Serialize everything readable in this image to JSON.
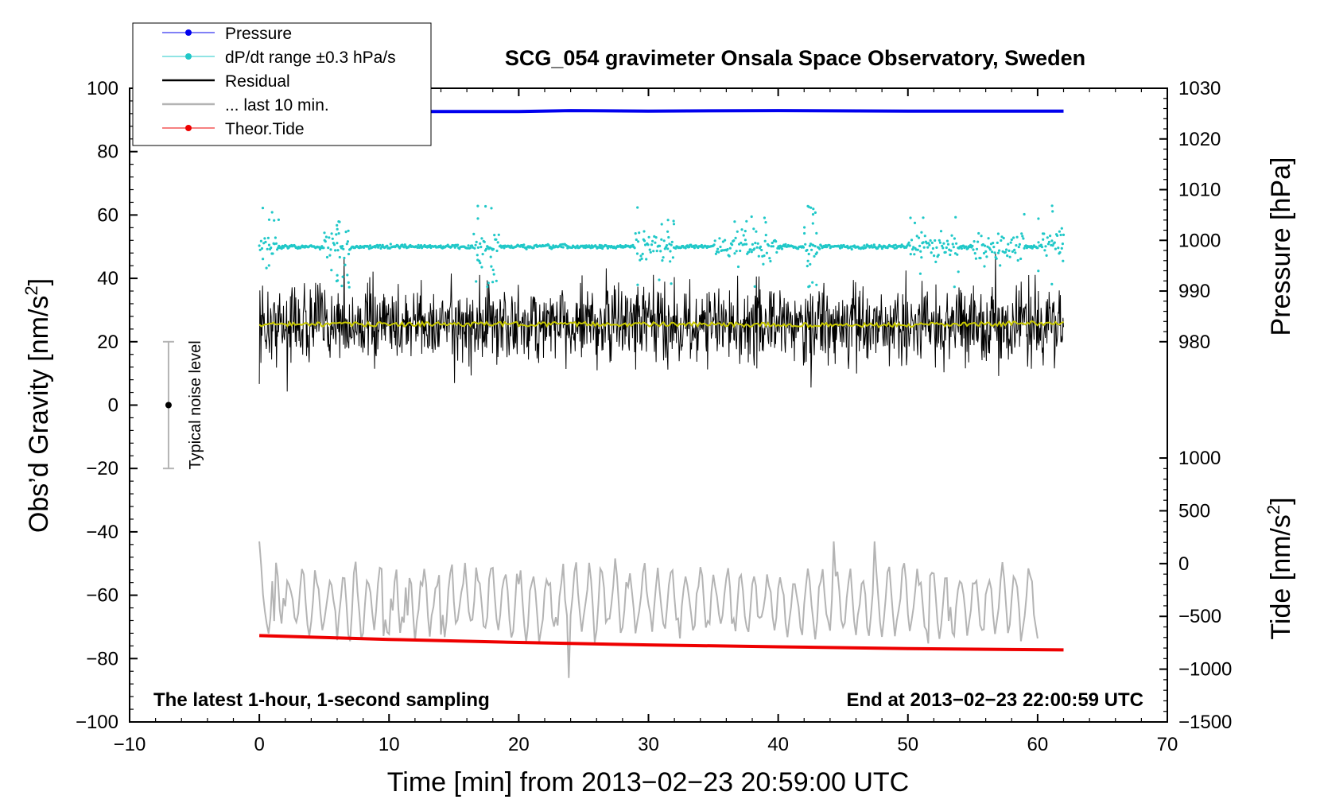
{
  "chart_data": {
    "type": "line",
    "title": "SCG_054 gravimeter Onsala Space Observatory, Sweden",
    "xlabel": "Time [min] from 2013−02−23 20:59:00 UTC",
    "ylabel_left_main": "Obs’d Gravity [nm/s",
    "ylabel_left_sup": "2",
    "ylabel_left_close": "]",
    "ylabel_right_pressure": "Pressure [hPa]",
    "ylabel_right_tide_main": "Tide [nm/s",
    "ylabel_right_tide_sup": "2",
    "ylabel_right_tide_close": "]",
    "xlim": [
      -10,
      70
    ],
    "ylim_left": [
      -100,
      100
    ],
    "x_ticks": [
      {
        "v": -10,
        "t": "−10"
      },
      {
        "v": 0,
        "t": "0"
      },
      {
        "v": 10,
        "t": "10"
      },
      {
        "v": 20,
        "t": "20"
      },
      {
        "v": 30,
        "t": "30"
      },
      {
        "v": 40,
        "t": "40"
      },
      {
        "v": 50,
        "t": "50"
      },
      {
        "v": 60,
        "t": "60"
      },
      {
        "v": 70,
        "t": "70"
      }
    ],
    "y_ticks_left": [
      {
        "v": 100,
        "t": "100"
      },
      {
        "v": 80,
        "t": "80"
      },
      {
        "v": 60,
        "t": "60"
      },
      {
        "v": 40,
        "t": "40"
      },
      {
        "v": 20,
        "t": "20"
      },
      {
        "v": 0,
        "t": "0"
      },
      {
        "v": -20,
        "t": "−20"
      },
      {
        "v": -40,
        "t": "−40"
      },
      {
        "v": -60,
        "t": "−60"
      },
      {
        "v": -80,
        "t": "−80"
      },
      {
        "v": -100,
        "t": "−100"
      }
    ],
    "pressure_axis": {
      "map": {
        "value_a": 1030,
        "gravity_a": 100,
        "value_b": 980,
        "gravity_b": 20
      },
      "ticks": [
        {
          "v": 1030,
          "t": "1030"
        },
        {
          "v": 1020,
          "t": "1020"
        },
        {
          "v": 1010,
          "t": "1010"
        },
        {
          "v": 1000,
          "t": "1000"
        },
        {
          "v": 990,
          "t": "990"
        },
        {
          "v": 980,
          "t": "980"
        }
      ]
    },
    "tide_axis": {
      "map": {
        "value_a": 1000,
        "gravity_a": -16.7,
        "value_b": -1500,
        "gravity_b": -100
      },
      "ticks": [
        {
          "v": 1000,
          "t": "1000"
        },
        {
          "v": 500,
          "t": "500"
        },
        {
          "v": 0,
          "t": "0"
        },
        {
          "v": -500,
          "t": "−500"
        },
        {
          "v": -1000,
          "t": "−1000"
        },
        {
          "v": -1500,
          "t": "−1500"
        }
      ]
    },
    "series": [
      {
        "name": "Pressure",
        "color": "#0000ee",
        "axis": "pressure",
        "x": [
          0,
          10,
          20,
          24,
          30,
          40,
          50,
          62
        ],
        "values": [
          1025.3,
          1025.4,
          1025.4,
          1025.6,
          1025.5,
          1025.6,
          1025.5,
          1025.5
        ]
      },
      {
        "name": "dP/dt range ±0.3 hPa/s",
        "color": "#20c8c8",
        "axis": "gravity_scatter",
        "center": 50,
        "x_range": [
          0,
          62
        ],
        "spread_typical": 1.5,
        "bursts_min": [
          [
            0,
            1.5
          ],
          [
            5,
            7
          ],
          [
            16.5,
            18.5
          ],
          [
            29,
            32
          ],
          [
            35,
            40
          ],
          [
            42,
            43
          ],
          [
            50,
            54
          ],
          [
            55,
            59
          ],
          [
            60,
            62
          ]
        ]
      },
      {
        "name": "Residual",
        "color": "#000000",
        "axis": "gravity_noise",
        "center": 25.5,
        "x_range": [
          0,
          62
        ],
        "amplitude_typical": 8,
        "min": 0,
        "max": 48
      },
      {
        "name": "... last 10 min.",
        "color": "#b4b4b4",
        "axis": "gravity_wave",
        "center": -62,
        "x_range": [
          0,
          60
        ],
        "amplitude_typical": 10,
        "min": -87,
        "max": -43
      },
      {
        "name": "Theor.Tide",
        "color": "#ee0000",
        "axis": "tide",
        "x": [
          0,
          10,
          20,
          30,
          40,
          50,
          62
        ],
        "values": [
          -682,
          -718,
          -747,
          -770,
          -788,
          -805,
          -818
        ]
      },
      {
        "name": "running mean",
        "color": "#c8c800",
        "axis": "gravity",
        "x": [
          0,
          10,
          20,
          30,
          40,
          50,
          62
        ],
        "values": [
          25.5,
          25.5,
          25.6,
          25.5,
          25.3,
          25.2,
          26
        ]
      }
    ],
    "legend": [
      {
        "label": "Pressure",
        "color": "#0000ee",
        "marker": true,
        "width": 1
      },
      {
        "label": "dP/dt range ±0.3 hPa/s",
        "color": "#20c8c8",
        "marker": true,
        "width": 1
      },
      {
        "label": "Residual",
        "color": "#000000",
        "marker": false,
        "width": 2.5
      },
      {
        "label": "... last 10 min.",
        "color": "#b4b4b4",
        "marker": false,
        "width": 2.5
      },
      {
        "label": "Theor.Tide",
        "color": "#ee0000",
        "marker": true,
        "width": 1
      }
    ],
    "legend_position": "top-left",
    "noise_indicator": {
      "label": "Typical noise level",
      "x": -7,
      "center": 0,
      "low": -20,
      "high": 20
    },
    "annotations": {
      "bottom_left": "The latest 1-hour, 1-second sampling",
      "bottom_right": "End at 2013−02−23 22:00:59 UTC"
    }
  }
}
